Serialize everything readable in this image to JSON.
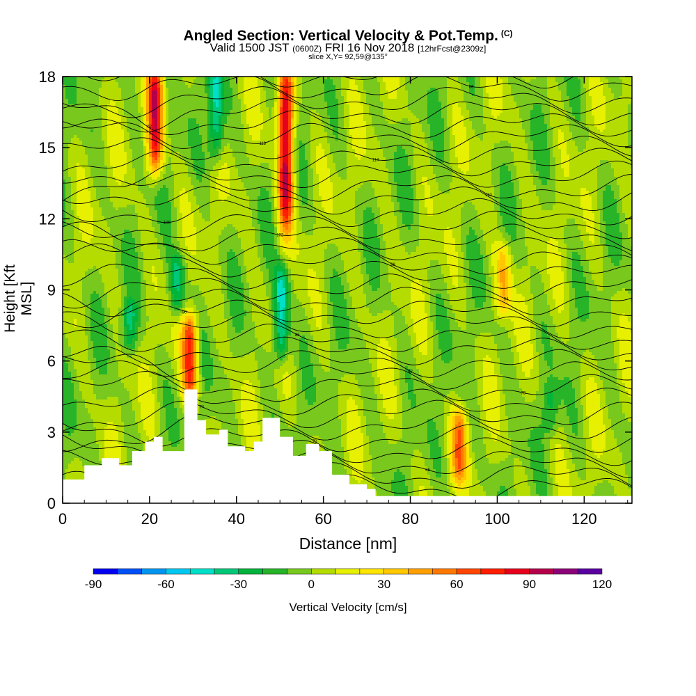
{
  "header": {
    "title": "Angled Section: Vertical Velocity & Pot.Temp.",
    "title_suffix": "(C)",
    "valid_prefix": "Valid 1500 JST",
    "valid_utc": "(0600Z)",
    "valid_date": "FRI 16 Nov 2018",
    "forecast": "[12hrFcst@2309z]",
    "slice": "slice X,Y= 92,59@135°"
  },
  "chart_data": {
    "type": "heatmap",
    "title": "Angled Section: Vertical Velocity & Pot.Temp.",
    "xlabel": "Distance [nm]",
    "ylabel": "Height [Kft MSL]",
    "xlim": [
      0,
      131
    ],
    "ylim": [
      0,
      18
    ],
    "x_ticks": [
      0,
      20,
      40,
      60,
      80,
      100,
      120
    ],
    "y_ticks": [
      0,
      3,
      6,
      9,
      12,
      15,
      18
    ],
    "colorbar": {
      "label": "Vertical Velocity [cm/s]",
      "ticks": [
        -90,
        -60,
        -30,
        0,
        30,
        60,
        90,
        120
      ],
      "range": [
        -90,
        120
      ],
      "colors": [
        "#0000f0",
        "#0050f8",
        "#0096f0",
        "#00c8f0",
        "#00e0c8",
        "#00c878",
        "#00b43c",
        "#28b428",
        "#78c81e",
        "#b4dc00",
        "#e6f000",
        "#ffe600",
        "#ffc800",
        "#ffa000",
        "#ff7800",
        "#ff4600",
        "#ff1e00",
        "#e6001e",
        "#b4004b",
        "#8c0078",
        "#5a00a0"
      ]
    },
    "updraft_cores": [
      {
        "x": 21,
        "ymin": 14.5,
        "ymax": 18,
        "w": 85
      },
      {
        "x": 51,
        "ymin": 12,
        "ymax": 18,
        "w": 95
      },
      {
        "x": 29,
        "ymin": 5,
        "ymax": 7.5,
        "w": 75
      },
      {
        "x": 91,
        "ymin": 1.5,
        "ymax": 3.5,
        "w": 50
      },
      {
        "x": 101,
        "ymin": 8.5,
        "ymax": 10.5,
        "w": 40
      }
    ],
    "downdraft_cores": [
      {
        "x": 35,
        "ymin": 15,
        "ymax": 18,
        "w": -45
      },
      {
        "x": 50,
        "ymin": 6.5,
        "ymax": 9.5,
        "w": -50
      },
      {
        "x": 26,
        "ymin": 8.5,
        "ymax": 10,
        "w": -35
      },
      {
        "x": 15,
        "ymin": 7,
        "ymax": 8,
        "w": -30
      },
      {
        "x": 112,
        "ymin": 3.5,
        "ymax": 4.5,
        "w": -20
      }
    ],
    "isentrope_labels": [
      "62",
      "66",
      "70",
      "74",
      "78",
      "82",
      "86",
      "90",
      "94",
      "98",
      "102",
      "106",
      "110",
      "114",
      "118"
    ],
    "terrain": {
      "x": [
        0,
        5,
        5,
        9,
        9,
        13,
        13,
        16,
        16,
        19,
        19,
        21,
        21,
        23,
        23,
        28,
        28,
        31,
        31,
        33,
        33,
        36,
        36,
        38,
        38,
        42,
        42,
        44,
        44,
        46,
        46,
        50,
        50,
        53,
        53,
        56,
        56,
        59,
        59,
        62,
        62,
        66,
        66,
        70,
        70,
        72,
        72,
        131
      ],
      "height_kft": [
        1,
        1,
        1.6,
        1.6,
        1.9,
        1.9,
        1.6,
        1.6,
        2.2,
        2.2,
        2.6,
        2.6,
        2.8,
        2.8,
        2.2,
        2.2,
        4.8,
        4.8,
        3.5,
        3.5,
        2.9,
        2.9,
        3.1,
        3.1,
        2.4,
        2.4,
        2.2,
        2.2,
        2.6,
        2.6,
        3.6,
        3.6,
        2.8,
        2.8,
        2.0,
        2.0,
        2.5,
        2.5,
        2.2,
        2.2,
        1.2,
        1.2,
        0.8,
        0.8,
        0.6,
        0.6,
        0.3,
        0.3
      ]
    }
  }
}
